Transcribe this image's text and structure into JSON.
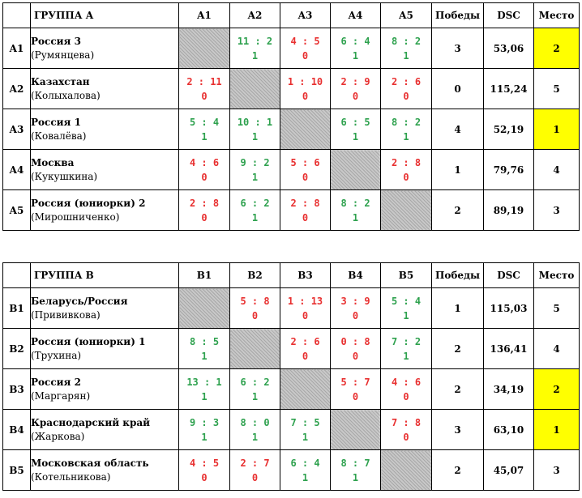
{
  "groups": [
    {
      "title": "ГРУППА А",
      "cols": [
        "A1",
        "A2",
        "A3",
        "A4",
        "A5"
      ],
      "wins_header": "Победы",
      "dsc_header": "DSC",
      "place_header": "Место",
      "rows": [
        {
          "code": "A1",
          "team": "Россия 3",
          "player": "(Румянцева)",
          "results": [
            null,
            {
              "score": "11 : 2",
              "points": "1",
              "win": true
            },
            {
              "score": "4 : 5",
              "points": "0",
              "win": false
            },
            {
              "score": "6 : 4",
              "points": "1",
              "win": true
            },
            {
              "score": "8 : 2",
              "points": "1",
              "win": true
            }
          ],
          "wins": "3",
          "dsc": "53,06",
          "place": "2",
          "highlight": true
        },
        {
          "code": "A2",
          "team": "Казахстан",
          "player": "(Колыхалова)",
          "results": [
            {
              "score": "2 : 11",
              "points": "0",
              "win": false
            },
            null,
            {
              "score": "1 : 10",
              "points": "0",
              "win": false
            },
            {
              "score": "2 : 9",
              "points": "0",
              "win": false
            },
            {
              "score": "2 : 6",
              "points": "0",
              "win": false
            }
          ],
          "wins": "0",
          "dsc": "115,24",
          "place": "5",
          "highlight": false
        },
        {
          "code": "A3",
          "team": "Россия 1",
          "player": "(Ковалёва)",
          "results": [
            {
              "score": "5 : 4",
              "points": "1",
              "win": true
            },
            {
              "score": "10 : 1",
              "points": "1",
              "win": true
            },
            null,
            {
              "score": "6 : 5",
              "points": "1",
              "win": true
            },
            {
              "score": "8 : 2",
              "points": "1",
              "win": true
            }
          ],
          "wins": "4",
          "dsc": "52,19",
          "place": "1",
          "highlight": true
        },
        {
          "code": "A4",
          "team": "Москва",
          "player": "(Кукушкина)",
          "results": [
            {
              "score": "4 : 6",
              "points": "0",
              "win": false
            },
            {
              "score": "9 : 2",
              "points": "1",
              "win": true
            },
            {
              "score": "5 : 6",
              "points": "0",
              "win": false
            },
            null,
            {
              "score": "2 : 8",
              "points": "0",
              "win": false
            }
          ],
          "wins": "1",
          "dsc": "79,76",
          "place": "4",
          "highlight": false
        },
        {
          "code": "A5",
          "team": "Россия (юниорки) 2",
          "player": "(Мирошниченко)",
          "results": [
            {
              "score": "2 : 8",
              "points": "0",
              "win": false
            },
            {
              "score": "6 : 2",
              "points": "1",
              "win": true
            },
            {
              "score": "2 : 8",
              "points": "0",
              "win": false
            },
            {
              "score": "8 : 2",
              "points": "1",
              "win": true
            },
            null
          ],
          "wins": "2",
          "dsc": "89,19",
          "place": "3",
          "highlight": false
        }
      ]
    },
    {
      "title": "ГРУППА В",
      "cols": [
        "B1",
        "B2",
        "B3",
        "B4",
        "B5"
      ],
      "wins_header": "Победы",
      "dsc_header": "DSC",
      "place_header": "Место",
      "rows": [
        {
          "code": "B1",
          "team": "Беларусь/Россия",
          "player": "(Прививкова)",
          "results": [
            null,
            {
              "score": "5 : 8",
              "points": "0",
              "win": false
            },
            {
              "score": "1 : 13",
              "points": "0",
              "win": false
            },
            {
              "score": "3 : 9",
              "points": "0",
              "win": false
            },
            {
              "score": "5 : 4",
              "points": "1",
              "win": true
            }
          ],
          "wins": "1",
          "dsc": "115,03",
          "place": "5",
          "highlight": false
        },
        {
          "code": "B2",
          "team": "Россия (юниорки) 1",
          "player": "(Трухина)",
          "results": [
            {
              "score": "8 : 5",
              "points": "1",
              "win": true
            },
            null,
            {
              "score": "2 : 6",
              "points": "0",
              "win": false
            },
            {
              "score": "0 : 8",
              "points": "0",
              "win": false
            },
            {
              "score": "7 : 2",
              "points": "1",
              "win": true
            }
          ],
          "wins": "2",
          "dsc": "136,41",
          "place": "4",
          "highlight": false
        },
        {
          "code": "B3",
          "team": "Россия 2",
          "player": "(Маргарян)",
          "results": [
            {
              "score": "13 : 1",
              "points": "1",
              "win": true
            },
            {
              "score": "6 : 2",
              "points": "1",
              "win": true
            },
            null,
            {
              "score": "5 : 7",
              "points": "0",
              "win": false
            },
            {
              "score": "4 : 6",
              "points": "0",
              "win": false
            }
          ],
          "wins": "2",
          "dsc": "34,19",
          "place": "2",
          "highlight": true
        },
        {
          "code": "B4",
          "team": "Краснодарский край",
          "player": "(Жаркова)",
          "results": [
            {
              "score": "9 : 3",
              "points": "1",
              "win": true
            },
            {
              "score": "8 : 0",
              "points": "1",
              "win": true
            },
            {
              "score": "7 : 5",
              "points": "1",
              "win": true
            },
            null,
            {
              "score": "7 : 8",
              "points": "0",
              "win": false
            }
          ],
          "wins": "3",
          "dsc": "63,10",
          "place": "1",
          "highlight": true
        },
        {
          "code": "B5",
          "team": "Московская область",
          "player": "(Котельникова)",
          "results": [
            {
              "score": "4 : 5",
              "points": "0",
              "win": false
            },
            {
              "score": "2 : 7",
              "points": "0",
              "win": false
            },
            {
              "score": "6 : 4",
              "points": "1",
              "win": true
            },
            {
              "score": "8 : 7",
              "points": "1",
              "win": true
            },
            null
          ],
          "wins": "2",
          "dsc": "45,07",
          "place": "3",
          "highlight": false
        }
      ]
    }
  ]
}
